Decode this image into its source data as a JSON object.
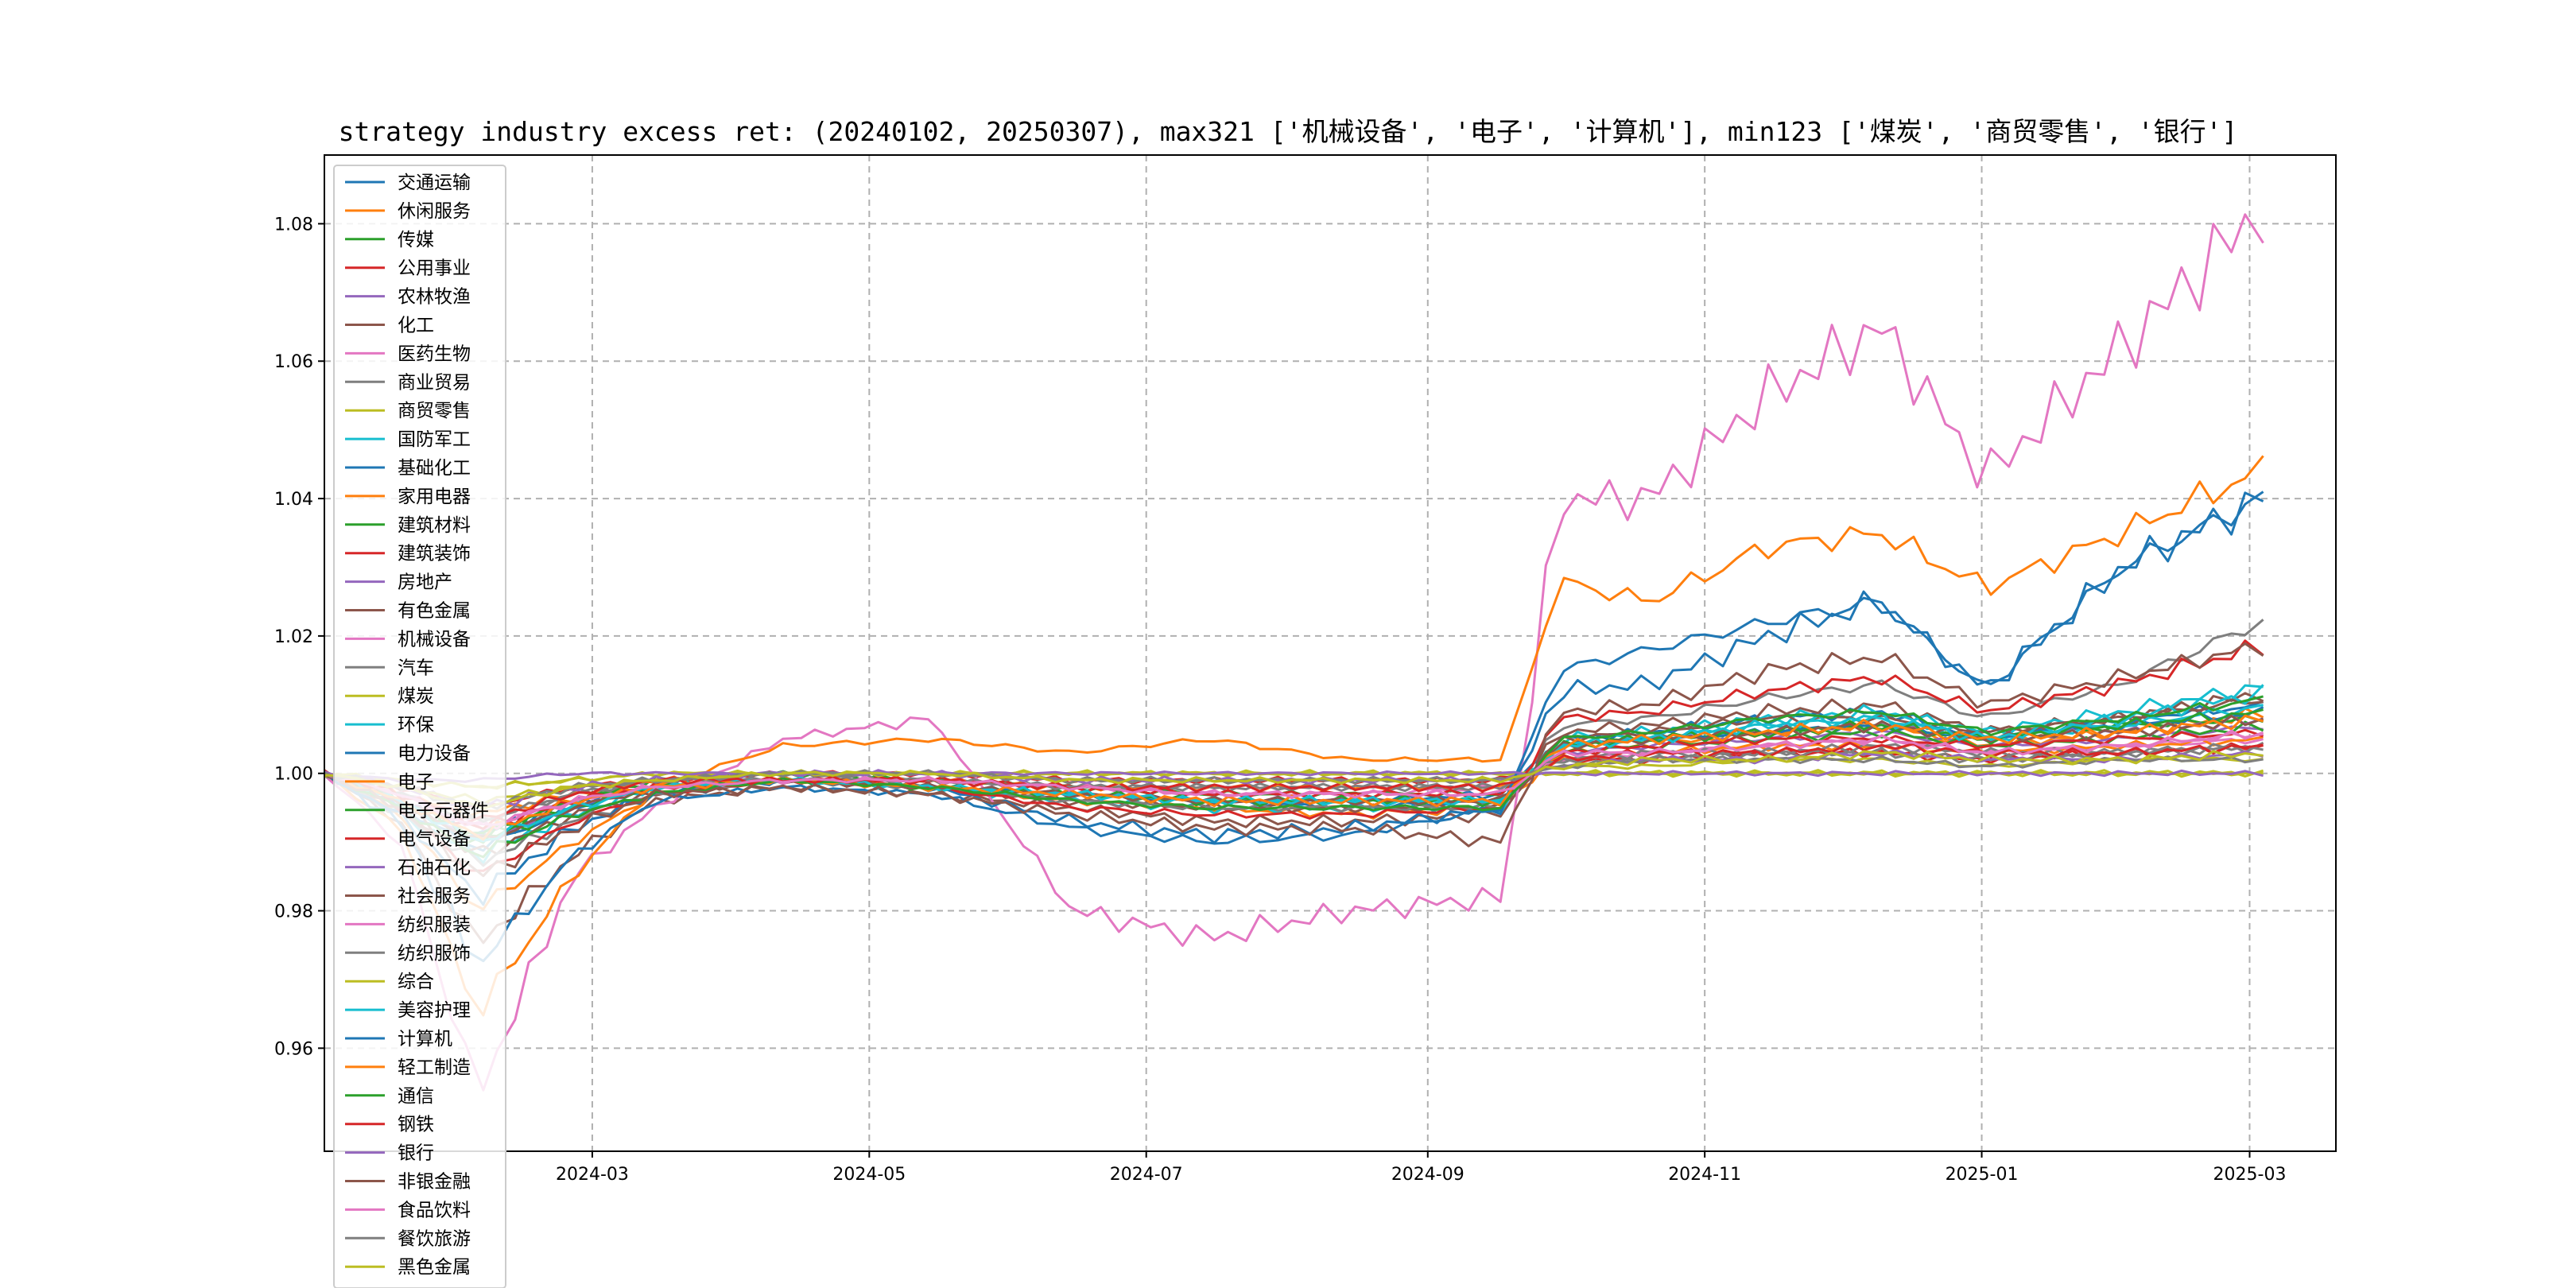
{
  "chart_data": {
    "type": "line",
    "title": "strategy industry excess ret: (20240102, 20250307), max321 ['机械设备', '电子', '计算机'], min123 ['煤炭', '商贸零售', '银行']",
    "xlabel": "",
    "ylabel": "",
    "x_ticks": [
      "2024-03",
      "2024-05",
      "2024-07",
      "2024-09",
      "2024-11",
      "2025-01",
      "2025-03"
    ],
    "xlim": [
      "2024-01-02",
      "2025-03-20"
    ],
    "y_ticks": [
      "0.96",
      "0.98",
      "1.00",
      "1.02",
      "1.04",
      "1.06",
      "1.08"
    ],
    "ylim": [
      0.945,
      1.09
    ],
    "grid": true,
    "legend_position": "upper-left",
    "x_dates": [
      "2024-01-02",
      "2024-01-19",
      "2024-02-05",
      "2024-02-26",
      "2024-03-15",
      "2024-04-12",
      "2024-05-15",
      "2024-06-15",
      "2024-07-15",
      "2024-08-15",
      "2024-09-18",
      "2024-09-30",
      "2024-10-20",
      "2024-11-15",
      "2024-12-10",
      "2025-01-02",
      "2025-02-01",
      "2025-03-07"
    ],
    "colors": [
      "#1f77b4",
      "#ff7f0e",
      "#2ca02c",
      "#d62728",
      "#9467bd",
      "#8c564b",
      "#e377c2",
      "#7f7f7f",
      "#bcbd22",
      "#17becf"
    ],
    "series": [
      {
        "name": "交通运输",
        "values": [
          1.0,
          0.995,
          0.991,
          0.996,
          0.998,
          0.999,
          0.998,
          0.997,
          0.996,
          0.996,
          0.997,
          1.005,
          1.006,
          1.008,
          1.009,
          1.005,
          1.008,
          1.01
        ]
      },
      {
        "name": "休闲服务",
        "values": [
          1.0,
          0.994,
          0.98,
          0.99,
          0.997,
          0.999,
          0.998,
          0.996,
          0.995,
          0.994,
          0.995,
          1.003,
          1.004,
          1.006,
          1.007,
          1.004,
          1.006,
          1.009
        ]
      },
      {
        "name": "传媒",
        "values": [
          1.0,
          0.996,
          0.99,
          0.996,
          0.999,
          1.0,
          0.999,
          0.998,
          0.997,
          0.997,
          0.997,
          1.004,
          1.005,
          1.006,
          1.007,
          1.005,
          1.007,
          1.008
        ]
      },
      {
        "name": "公用事业",
        "values": [
          1.0,
          0.998,
          0.995,
          0.998,
          0.999,
          1.0,
          1.0,
          0.999,
          0.999,
          0.999,
          0.999,
          1.002,
          1.002,
          1.003,
          1.003,
          1.002,
          1.003,
          1.004
        ]
      },
      {
        "name": "农林牧渔",
        "values": [
          1.0,
          0.996,
          0.99,
          0.995,
          0.998,
          0.999,
          0.998,
          0.997,
          0.996,
          0.996,
          0.996,
          1.003,
          1.004,
          1.005,
          1.006,
          1.004,
          1.005,
          1.007
        ]
      },
      {
        "name": "化工",
        "values": [
          1.0,
          0.993,
          0.975,
          0.988,
          0.996,
          0.998,
          0.997,
          0.995,
          0.993,
          0.993,
          0.994,
          1.006,
          1.007,
          1.009,
          1.01,
          1.006,
          1.008,
          1.012
        ]
      },
      {
        "name": "医药生物",
        "values": [
          1.0,
          0.997,
          0.992,
          0.996,
          0.998,
          0.999,
          0.999,
          0.998,
          0.997,
          0.997,
          0.998,
          1.002,
          1.003,
          1.004,
          1.005,
          1.003,
          1.004,
          1.005
        ]
      },
      {
        "name": "商业贸易",
        "values": [
          1.0,
          0.997,
          0.993,
          0.997,
          0.999,
          1.0,
          0.999,
          0.998,
          0.998,
          0.998,
          0.998,
          1.002,
          1.002,
          1.003,
          1.003,
          1.002,
          1.003,
          1.004
        ]
      },
      {
        "name": "商贸零售",
        "values": [
          1.0,
          0.999,
          0.998,
          0.999,
          1.0,
          1.0,
          1.0,
          1.0,
          1.0,
          1.0,
          1.0,
          1.0,
          1.0,
          1.0,
          1.0,
          1.0,
          1.0,
          1.0
        ]
      },
      {
        "name": "国防军工",
        "values": [
          1.0,
          0.994,
          0.988,
          0.994,
          0.998,
          0.999,
          0.998,
          0.996,
          0.995,
          0.995,
          0.995,
          1.005,
          1.006,
          1.008,
          1.009,
          1.006,
          1.009,
          1.013
        ]
      },
      {
        "name": "基础化工",
        "values": [
          1.0,
          0.995,
          0.989,
          0.995,
          0.998,
          0.999,
          0.998,
          0.997,
          0.996,
          0.995,
          0.996,
          1.004,
          1.005,
          1.006,
          1.007,
          1.005,
          1.007,
          1.009
        ]
      },
      {
        "name": "家用电器",
        "values": [
          1.0,
          0.997,
          0.994,
          0.997,
          0.999,
          0.999,
          0.999,
          0.998,
          0.998,
          0.998,
          0.998,
          1.002,
          1.003,
          1.004,
          1.004,
          1.003,
          1.004,
          1.005
        ]
      },
      {
        "name": "建筑材料",
        "values": [
          1.0,
          0.996,
          0.991,
          0.996,
          0.998,
          0.999,
          0.999,
          0.998,
          0.997,
          0.997,
          0.997,
          1.003,
          1.004,
          1.005,
          1.006,
          1.004,
          1.005,
          1.007
        ]
      },
      {
        "name": "建筑装饰",
        "values": [
          1.0,
          0.996,
          0.992,
          0.996,
          0.998,
          0.999,
          0.999,
          0.998,
          0.997,
          0.997,
          0.997,
          1.003,
          1.004,
          1.005,
          1.005,
          1.004,
          1.005,
          1.006
        ]
      },
      {
        "name": "房地产",
        "values": [
          1.0,
          0.996,
          0.99,
          0.995,
          0.998,
          0.999,
          0.998,
          0.997,
          0.996,
          0.996,
          0.996,
          1.004,
          1.005,
          1.006,
          1.007,
          1.005,
          1.006,
          1.008
        ]
      },
      {
        "name": "有色金属",
        "values": [
          1.0,
          0.995,
          0.988,
          0.994,
          0.997,
          0.999,
          0.998,
          0.996,
          0.995,
          0.995,
          0.995,
          1.005,
          1.006,
          1.008,
          1.008,
          1.006,
          1.008,
          1.011
        ]
      },
      {
        "name": "机械设备",
        "values": [
          1.0,
          0.99,
          0.953,
          0.985,
          0.995,
          1.005,
          1.008,
          0.98,
          0.976,
          0.98,
          0.982,
          1.04,
          1.04,
          1.055,
          1.065,
          1.043,
          1.062,
          1.084
        ]
      },
      {
        "name": "汽车",
        "values": [
          1.0,
          0.994,
          0.987,
          0.993,
          0.997,
          0.999,
          0.998,
          0.996,
          0.995,
          0.995,
          0.995,
          1.007,
          1.008,
          1.011,
          1.013,
          1.008,
          1.013,
          1.023
        ]
      },
      {
        "name": "煤炭",
        "values": [
          1.0,
          0.999,
          0.998,
          0.999,
          1.0,
          1.0,
          1.0,
          1.0,
          1.0,
          1.0,
          1.0,
          1.0,
          1.0,
          1.0,
          1.0,
          1.0,
          1.0,
          1.0
        ]
      },
      {
        "name": "环保",
        "values": [
          1.0,
          0.996,
          0.99,
          0.995,
          0.998,
          0.999,
          0.998,
          0.997,
          0.996,
          0.996,
          0.996,
          1.004,
          1.005,
          1.007,
          1.008,
          1.005,
          1.007,
          1.01
        ]
      },
      {
        "name": "电力设备",
        "values": [
          1.0,
          0.994,
          0.982,
          0.992,
          0.997,
          0.999,
          0.998,
          0.993,
          0.991,
          0.992,
          0.995,
          1.012,
          1.013,
          1.02,
          1.025,
          1.012,
          1.03,
          1.041
        ]
      },
      {
        "name": "电子",
        "values": [
          1.0,
          0.992,
          0.965,
          0.985,
          0.998,
          1.004,
          1.005,
          1.003,
          1.005,
          1.002,
          1.002,
          1.028,
          1.025,
          1.033,
          1.035,
          1.027,
          1.035,
          1.045
        ]
      },
      {
        "name": "电子元器件",
        "values": [
          1.0,
          0.996,
          0.99,
          0.995,
          0.998,
          0.999,
          0.998,
          0.997,
          0.996,
          0.996,
          0.996,
          1.004,
          1.005,
          1.006,
          1.007,
          1.005,
          1.007,
          1.009
        ]
      },
      {
        "name": "电气设备",
        "values": [
          1.0,
          0.995,
          0.985,
          0.993,
          0.997,
          0.999,
          0.998,
          0.995,
          0.994,
          0.994,
          0.995,
          1.008,
          1.009,
          1.012,
          1.014,
          1.009,
          1.013,
          1.019
        ]
      },
      {
        "name": "石油石化",
        "values": [
          1.0,
          0.998,
          0.995,
          0.998,
          0.999,
          1.0,
          1.0,
          0.999,
          0.999,
          0.999,
          0.999,
          1.001,
          1.002,
          1.002,
          1.003,
          1.002,
          1.002,
          1.003
        ]
      },
      {
        "name": "社会服务",
        "values": [
          1.0,
          0.996,
          0.99,
          0.995,
          0.998,
          0.999,
          0.998,
          0.997,
          0.996,
          0.996,
          0.996,
          1.004,
          1.005,
          1.006,
          1.007,
          1.005,
          1.006,
          1.008
        ]
      },
      {
        "name": "纺织服装",
        "values": [
          1.0,
          0.997,
          0.992,
          0.996,
          0.998,
          0.999,
          0.999,
          0.998,
          0.997,
          0.997,
          0.997,
          1.003,
          1.003,
          1.004,
          1.005,
          1.003,
          1.004,
          1.006
        ]
      },
      {
        "name": "纺织服饰",
        "values": [
          1.0,
          0.997,
          0.993,
          0.997,
          0.999,
          0.999,
          0.999,
          0.998,
          0.998,
          0.998,
          0.998,
          1.002,
          1.003,
          1.003,
          1.004,
          1.003,
          1.003,
          1.004
        ]
      },
      {
        "name": "综合",
        "values": [
          1.0,
          0.998,
          0.996,
          0.998,
          0.999,
          1.0,
          1.0,
          0.999,
          0.999,
          0.999,
          0.999,
          1.001,
          1.001,
          1.002,
          1.002,
          1.001,
          1.002,
          1.002
        ]
      },
      {
        "name": "美容护理",
        "values": [
          1.0,
          0.996,
          0.99,
          0.995,
          0.998,
          0.999,
          0.998,
          0.997,
          0.996,
          0.996,
          0.996,
          1.004,
          1.005,
          1.007,
          1.008,
          1.005,
          1.008,
          1.012
        ]
      },
      {
        "name": "计算机",
        "values": [
          1.0,
          0.993,
          0.972,
          0.988,
          0.996,
          0.998,
          0.997,
          0.992,
          0.99,
          0.991,
          0.995,
          1.015,
          1.018,
          1.022,
          1.025,
          1.012,
          1.03,
          1.041
        ]
      },
      {
        "name": "轻工制造",
        "values": [
          1.0,
          0.996,
          0.991,
          0.996,
          0.998,
          0.999,
          0.998,
          0.997,
          0.996,
          0.996,
          0.996,
          1.004,
          1.005,
          1.006,
          1.007,
          1.005,
          1.006,
          1.008
        ]
      },
      {
        "name": "通信",
        "values": [
          1.0,
          0.995,
          0.988,
          0.994,
          0.997,
          0.999,
          0.998,
          0.996,
          0.995,
          0.995,
          0.995,
          1.005,
          1.006,
          1.008,
          1.009,
          1.006,
          1.008,
          1.011
        ]
      },
      {
        "name": "钢铁",
        "values": [
          1.0,
          0.997,
          0.993,
          0.997,
          0.999,
          0.999,
          0.999,
          0.998,
          0.998,
          0.998,
          0.998,
          1.002,
          1.003,
          1.003,
          1.004,
          1.003,
          1.003,
          1.004
        ]
      },
      {
        "name": "银行",
        "values": [
          1.0,
          0.999,
          0.999,
          1.0,
          1.0,
          1.0,
          1.0,
          1.0,
          1.0,
          1.0,
          1.0,
          1.0,
          1.0,
          1.0,
          1.0,
          1.0,
          1.0,
          1.0
        ]
      },
      {
        "name": "非银金融",
        "values": [
          1.0,
          0.995,
          0.985,
          0.992,
          0.997,
          0.998,
          0.997,
          0.994,
          0.992,
          0.992,
          0.99,
          1.009,
          1.01,
          1.015,
          1.017,
          1.01,
          1.014,
          1.019
        ]
      },
      {
        "name": "食品饮料",
        "values": [
          1.0,
          0.997,
          0.992,
          0.996,
          0.998,
          0.999,
          0.999,
          0.998,
          0.997,
          0.997,
          0.997,
          1.003,
          1.003,
          1.004,
          1.005,
          1.003,
          1.004,
          1.006
        ]
      },
      {
        "name": "餐饮旅游",
        "values": [
          1.0,
          0.998,
          0.995,
          0.998,
          0.999,
          1.0,
          1.0,
          0.999,
          0.999,
          0.999,
          0.999,
          1.001,
          1.002,
          1.002,
          1.002,
          1.001,
          1.002,
          1.002
        ]
      },
      {
        "name": "黑色金属",
        "values": [
          1.0,
          0.998,
          0.995,
          0.998,
          0.999,
          1.0,
          1.0,
          0.999,
          0.999,
          0.999,
          0.999,
          1.001,
          1.002,
          1.002,
          1.003,
          1.002,
          1.002,
          1.003
        ]
      }
    ]
  }
}
